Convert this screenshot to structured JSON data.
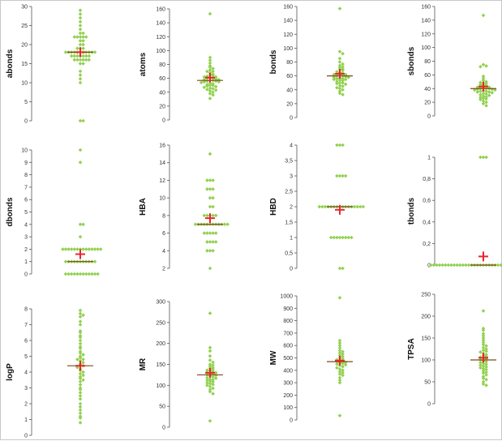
{
  "style": {
    "point_color": "#92d050",
    "mean_color": "#e8272b",
    "median_color": "#7a4a1a",
    "axis_color": "#555555"
  },
  "chart_data": [
    {
      "type": "scatter",
      "ylabel": "abonds",
      "ylim": [
        0,
        30
      ],
      "yticks": [
        0,
        5,
        10,
        15,
        20,
        25,
        30
      ],
      "tick_labels": [
        "0",
        "5",
        "10",
        "15",
        "20",
        "25",
        "30"
      ],
      "mean": 18,
      "median": 18,
      "values": [
        28,
        29,
        27,
        26,
        25,
        24,
        23,
        23,
        22,
        22,
        22,
        22,
        22,
        21,
        21,
        20,
        20,
        19,
        19,
        19,
        18,
        18,
        18,
        18,
        18,
        18,
        18,
        18,
        18,
        18,
        18,
        17,
        17,
        17,
        17,
        17,
        17,
        17,
        16,
        16,
        16,
        16,
        16,
        16,
        15,
        15,
        13,
        12,
        11,
        10,
        0,
        0
      ]
    },
    {
      "type": "scatter",
      "ylabel": "atoms",
      "ylim": [
        0,
        160
      ],
      "yticks": [
        0,
        20,
        40,
        60,
        80,
        100,
        120,
        140,
        160
      ],
      "tick_labels": [
        "0",
        "20",
        "40",
        "60",
        "80",
        "100",
        "120",
        "140",
        "160"
      ],
      "mean": 61,
      "median": 57,
      "values": [
        153,
        90,
        86,
        82,
        78,
        76,
        74,
        72,
        70,
        70,
        68,
        66,
        65,
        64,
        63,
        62,
        62,
        61,
        60,
        60,
        59,
        58,
        58,
        57,
        57,
        56,
        56,
        55,
        55,
        54,
        53,
        52,
        51,
        50,
        50,
        49,
        48,
        47,
        46,
        45,
        44,
        43,
        42,
        40,
        38,
        36,
        31
      ]
    },
    {
      "type": "scatter",
      "ylabel": "bonds",
      "ylim": [
        0,
        160
      ],
      "yticks": [
        0,
        20,
        40,
        60,
        80,
        100,
        120,
        140,
        160
      ],
      "tick_labels": [
        "0",
        "20",
        "40",
        "60",
        "80",
        "100",
        "120",
        "140",
        "160"
      ],
      "mean": 63,
      "median": 60,
      "values": [
        157,
        95,
        92,
        85,
        80,
        77,
        75,
        73,
        72,
        70,
        69,
        68,
        66,
        65,
        64,
        63,
        62,
        62,
        61,
        60,
        60,
        59,
        58,
        58,
        57,
        56,
        56,
        55,
        55,
        54,
        53,
        52,
        50,
        50,
        49,
        48,
        46,
        45,
        43,
        42,
        40,
        38,
        35,
        33
      ]
    },
    {
      "type": "scatter",
      "ylabel": "sbonds",
      "ylim": [
        0,
        160
      ],
      "yticks": [
        0,
        20,
        40,
        60,
        80,
        100,
        120,
        140,
        160
      ],
      "tick_labels": [
        "0",
        "20",
        "40",
        "60",
        "80",
        "100",
        "120",
        "140",
        "160"
      ],
      "mean": 43,
      "median": 40,
      "values": [
        147,
        75,
        73,
        72,
        58,
        55,
        52,
        50,
        49,
        48,
        47,
        46,
        45,
        44,
        43,
        42,
        42,
        41,
        40,
        40,
        40,
        39,
        39,
        38,
        38,
        37,
        36,
        36,
        35,
        35,
        34,
        33,
        32,
        31,
        30,
        29,
        28,
        27,
        26,
        25,
        24,
        22,
        20,
        18,
        15
      ]
    },
    {
      "type": "scatter",
      "ylabel": "dbonds",
      "ylim": [
        0,
        10
      ],
      "yticks": [
        0,
        1,
        2,
        3,
        4,
        5,
        6,
        7,
        8,
        9,
        10
      ],
      "tick_labels": [
        "0",
        "1",
        "2",
        "3",
        "4",
        "5",
        "6",
        "7",
        "8",
        "9",
        "10"
      ],
      "mean": 1.6,
      "median": 1,
      "values": [
        10,
        9,
        4,
        4,
        3,
        2,
        2,
        2,
        2,
        2,
        2,
        2,
        2,
        2,
        2,
        2,
        2,
        2,
        2,
        1,
        1,
        1,
        1,
        1,
        1,
        1,
        1,
        1,
        1,
        1,
        0,
        0,
        0,
        0,
        0,
        0,
        0,
        0,
        0,
        0,
        0,
        0
      ]
    },
    {
      "type": "scatter",
      "ylabel": "HBA",
      "ylim": [
        2,
        16
      ],
      "yticks": [
        2,
        4,
        6,
        8,
        10,
        12,
        14,
        16
      ],
      "tick_labels": [
        "2",
        "4",
        "6",
        "8",
        "10",
        "12",
        "14",
        "16"
      ],
      "mean": 7.7,
      "median": 7,
      "values": [
        15,
        12,
        12,
        12,
        11,
        11,
        11,
        10,
        10,
        9,
        9,
        8,
        8,
        8,
        8,
        8,
        7,
        7,
        7,
        7,
        7,
        7,
        7,
        7,
        7,
        7,
        7,
        7,
        6,
        6,
        6,
        6,
        6,
        5,
        5,
        5,
        5,
        4,
        4,
        4,
        2
      ]
    },
    {
      "type": "scatter",
      "ylabel": "HBD",
      "ylim": [
        0,
        4
      ],
      "yticks": [
        0,
        0.5,
        1,
        1.5,
        2,
        2.5,
        3,
        3.5,
        4
      ],
      "tick_labels": [
        "0",
        "0,5",
        "1",
        "1,5",
        "2",
        "2,5",
        "3",
        "3,5",
        "4"
      ],
      "mean": 1.9,
      "median": 2,
      "values": [
        4,
        4,
        4,
        3,
        3,
        3,
        3,
        2,
        2,
        2,
        2,
        2,
        2,
        2,
        2,
        2,
        2,
        2,
        2,
        2,
        2,
        2,
        2,
        1,
        1,
        1,
        1,
        1,
        1,
        1,
        1,
        0,
        0
      ]
    },
    {
      "type": "scatter",
      "ylabel": "tbonds",
      "ylim": [
        0,
        1
      ],
      "yticks": [
        0,
        0.2,
        0.4,
        0.6,
        0.8,
        1
      ],
      "tick_labels": [
        "0",
        "0,2",
        "0,4",
        "0,6",
        "0,8",
        "1"
      ],
      "mean": 0.08,
      "median": 0,
      "values": [
        1,
        1,
        1,
        0,
        0,
        0,
        0,
        0,
        0,
        0,
        0,
        0,
        0,
        0,
        0,
        0,
        0,
        0,
        0,
        0,
        0,
        0,
        0,
        0,
        0,
        0,
        0,
        0,
        0,
        0,
        0,
        0,
        0,
        0,
        0,
        0,
        0,
        0,
        0,
        0
      ]
    },
    {
      "type": "scatter",
      "ylabel": "logP",
      "ylim": [
        0,
        8
      ],
      "yticks": [
        0,
        1,
        2,
        3,
        4,
        5,
        6,
        7,
        8
      ],
      "tick_labels": [
        "0",
        "1",
        "2",
        "3",
        "4",
        "5",
        "6",
        "7",
        "8"
      ],
      "mean": 4.4,
      "median": 4.4,
      "values": [
        7.9,
        7.7,
        7.6,
        7.5,
        7.2,
        7,
        6.6,
        6.5,
        6.3,
        6.2,
        6,
        5.8,
        5.6,
        5.5,
        5.3,
        5.2,
        5.1,
        5,
        4.9,
        4.8,
        4.8,
        4.7,
        4.6,
        4.5,
        4.4,
        4.4,
        4.3,
        4.2,
        4.1,
        4,
        3.9,
        3.8,
        3.7,
        3.6,
        3.5,
        3.4,
        3.2,
        3,
        2.9,
        2.7,
        2.5,
        2.3,
        2,
        1.8,
        1.6,
        1.4,
        1.2,
        1.1,
        0.8
      ]
    },
    {
      "type": "scatter",
      "ylabel": "MR",
      "ylim": [
        0,
        300
      ],
      "yticks": [
        0,
        50,
        100,
        150,
        200,
        250,
        300
      ],
      "tick_labels": [
        "0",
        "50",
        "100",
        "150",
        "200",
        "250",
        "300"
      ],
      "mean": 130,
      "median": 125,
      "values": [
        272,
        190,
        182,
        170,
        160,
        155,
        150,
        148,
        145,
        142,
        140,
        138,
        136,
        135,
        133,
        131,
        130,
        128,
        127,
        125,
        124,
        122,
        120,
        118,
        117,
        115,
        113,
        112,
        110,
        108,
        106,
        104,
        102,
        100,
        97,
        93,
        90,
        85,
        80,
        15
      ]
    },
    {
      "type": "scatter",
      "ylabel": "MW",
      "ylim": [
        0,
        1000
      ],
      "yticks": [
        0,
        100,
        200,
        300,
        400,
        500,
        600,
        700,
        800,
        900,
        1000
      ],
      "tick_labels": [
        "0",
        "100",
        "200",
        "300",
        "400",
        "500",
        "600",
        "700",
        "800",
        "900",
        "1000"
      ],
      "mean": 478,
      "median": 470,
      "values": [
        985,
        640,
        620,
        600,
        580,
        560,
        550,
        540,
        530,
        520,
        510,
        500,
        490,
        485,
        480,
        475,
        470,
        465,
        460,
        455,
        450,
        445,
        440,
        430,
        420,
        410,
        400,
        390,
        380,
        370,
        360,
        340,
        320,
        300,
        35
      ]
    },
    {
      "type": "scatter",
      "ylabel": "TPSA",
      "ylim": [
        0,
        250
      ],
      "yticks": [
        0,
        50,
        100,
        150,
        200,
        250
      ],
      "tick_labels": [
        "0",
        "50",
        "100",
        "150",
        "200",
        "250"
      ],
      "mean": 105,
      "median": 100,
      "values": [
        212,
        172,
        168,
        160,
        155,
        150,
        145,
        140,
        135,
        132,
        128,
        125,
        122,
        120,
        118,
        115,
        112,
        110,
        108,
        106,
        104,
        102,
        100,
        98,
        96,
        94,
        92,
        90,
        88,
        86,
        84,
        82,
        80,
        78,
        75,
        72,
        70,
        66,
        62,
        58,
        55,
        50,
        45,
        42
      ]
    }
  ]
}
